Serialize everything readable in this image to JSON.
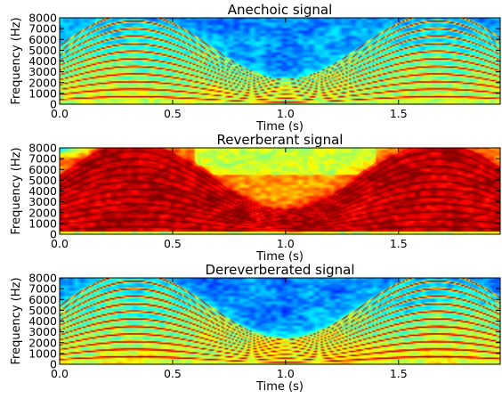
{
  "chart_data": [
    {
      "type": "heatmap",
      "title": "Anechoic signal",
      "xlabel": "Time (s)",
      "ylabel": "Frequency (Hz)",
      "xlim": [
        0,
        1.95
      ],
      "ylim": [
        0,
        8000
      ],
      "x_ticks": [
        0.0,
        0.5,
        1.0,
        1.5
      ],
      "x_tick_labels": [
        "0.0",
        "0.5",
        "1.0",
        "1.5"
      ],
      "y_ticks": [
        0,
        1000,
        2000,
        3000,
        4000,
        5000,
        6000,
        7000,
        8000
      ],
      "y_tick_labels": [
        "0",
        "1000",
        "2000",
        "3000",
        "4000",
        "5000",
        "6000",
        "7000",
        "8000"
      ],
      "colormap": "jet",
      "signal": {
        "kind": "harmonic sweep",
        "fundamental_hz_at_peak": 700,
        "fundamental_hz_at_trough": 190,
        "peak_times_s": [
          0.33,
          1.66
        ],
        "trough_time_s": 1.0,
        "harmonics": 11
      },
      "reverberation": "none"
    },
    {
      "type": "heatmap",
      "title": "Reverberant signal",
      "xlabel": "Time (s)",
      "ylabel": "Frequency (Hz)",
      "xlim": [
        0,
        1.95
      ],
      "ylim": [
        0,
        8000
      ],
      "x_ticks": [
        0.0,
        0.5,
        1.0,
        1.5
      ],
      "x_tick_labels": [
        "0.0",
        "0.5",
        "1.0",
        "1.5"
      ],
      "y_ticks": [
        0,
        1000,
        2000,
        3000,
        4000,
        5000,
        6000,
        7000,
        8000
      ],
      "y_tick_labels": [
        "0",
        "1000",
        "2000",
        "3000",
        "4000",
        "5000",
        "6000",
        "7000",
        "8000"
      ],
      "colormap": "jet",
      "signal": {
        "kind": "harmonic sweep",
        "fundamental_hz_at_peak": 700,
        "fundamental_hz_at_trough": 190,
        "peak_times_s": [
          0.33,
          1.66
        ],
        "trough_time_s": 1.0,
        "harmonics": 11
      },
      "reverberation": "strong"
    },
    {
      "type": "heatmap",
      "title": "Dereverberated signal",
      "xlabel": "Time (s)",
      "ylabel": "Frequency (Hz)",
      "xlim": [
        0,
        1.95
      ],
      "ylim": [
        0,
        8000
      ],
      "x_ticks": [
        0.0,
        0.5,
        1.0,
        1.5
      ],
      "x_tick_labels": [
        "0.0",
        "0.5",
        "1.0",
        "1.5"
      ],
      "y_ticks": [
        0,
        1000,
        2000,
        3000,
        4000,
        5000,
        6000,
        7000,
        8000
      ],
      "y_tick_labels": [
        "0",
        "1000",
        "2000",
        "3000",
        "4000",
        "5000",
        "6000",
        "7000",
        "8000"
      ],
      "colormap": "jet",
      "signal": {
        "kind": "harmonic sweep",
        "fundamental_hz_at_peak": 700,
        "fundamental_hz_at_trough": 190,
        "peak_times_s": [
          0.33,
          1.66
        ],
        "trough_time_s": 1.0,
        "harmonics": 11
      },
      "reverberation": "residual"
    }
  ]
}
